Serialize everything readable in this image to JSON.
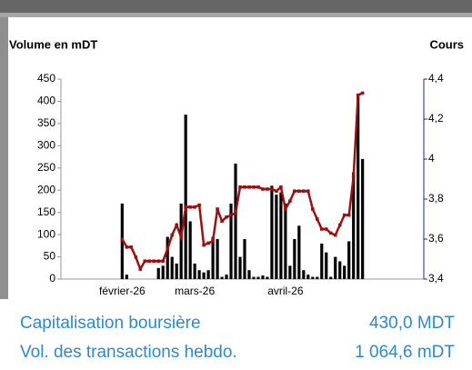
{
  "chart_data": {
    "type": "bar-line",
    "ylabel": "Volume en mDT",
    "y2label": "Cours",
    "categories": [
      null,
      null,
      null,
      null,
      null,
      null,
      null,
      null,
      null,
      null,
      null,
      null,
      null,
      "février-26",
      null,
      null,
      null,
      null,
      null,
      null,
      null,
      null,
      null,
      null,
      null,
      null,
      null,
      null,
      null,
      "mars-26",
      null,
      null,
      null,
      null,
      null,
      null,
      null,
      null,
      null,
      null,
      null,
      null,
      null,
      null,
      null,
      null,
      null,
      null,
      null,
      "avril-26",
      null,
      null,
      null,
      null,
      null,
      null,
      null,
      null,
      null,
      null,
      null,
      null,
      null,
      null,
      null,
      null,
      null,
      null,
      null,
      null,
      null,
      null,
      null,
      null,
      null,
      null,
      null,
      null,
      null,
      null
    ],
    "series": [
      {
        "color": "#000000",
        "axis": "y",
        "values": [
          null,
          null,
          null,
          null,
          null,
          null,
          null,
          null,
          null,
          null,
          null,
          null,
          null,
          170,
          10,
          null,
          null,
          null,
          null,
          null,
          null,
          25,
          30,
          95,
          50,
          35,
          170,
          370,
          130,
          35,
          20,
          15,
          20,
          95,
          90,
          5,
          10,
          170,
          260,
          50,
          90,
          20,
          5,
          5,
          8,
          5,
          210,
          190,
          195,
          170,
          30,
          90,
          120,
          20,
          10,
          5,
          5,
          80,
          60,
          5,
          50,
          40,
          30,
          85,
          240,
          410,
          270,
          null,
          null,
          null,
          null,
          null,
          null,
          null,
          null,
          null,
          null,
          null,
          null,
          null
        ]
      },
      {
        "color": "#9b1010",
        "axis": "y2",
        "values": [
          null,
          null,
          null,
          null,
          null,
          null,
          null,
          null,
          null,
          null,
          null,
          null,
          null,
          3.6,
          3.56,
          3.56,
          3.51,
          3.45,
          3.49,
          3.49,
          3.49,
          3.49,
          3.49,
          3.55,
          3.62,
          3.67,
          3.61,
          3.76,
          3.76,
          3.76,
          3.77,
          3.57,
          3.58,
          3.59,
          3.75,
          3.69,
          3.71,
          3.72,
          3.73,
          3.86,
          3.86,
          3.86,
          3.86,
          3.86,
          3.85,
          3.85,
          3.85,
          3.84,
          3.86,
          3.75,
          3.79,
          3.84,
          3.84,
          3.84,
          3.84,
          3.75,
          3.7,
          3.65,
          3.65,
          3.63,
          3.62,
          3.67,
          3.72,
          3.72,
          3.91,
          4.32,
          4.33,
          null,
          null,
          null,
          null,
          null,
          null,
          null,
          null,
          null,
          null,
          null,
          null,
          null
        ]
      }
    ],
    "ylim": [
      0,
      450
    ],
    "yticks": [
      0,
      50,
      100,
      150,
      200,
      250,
      300,
      350,
      400,
      450
    ],
    "y2lim": [
      3.4,
      4.4
    ],
    "y2ticks": [
      {
        "value": 3.4,
        "label": "3,4"
      },
      {
        "value": 3.6,
        "label": "3,6"
      },
      {
        "value": 3.8,
        "label": "3,8"
      },
      {
        "value": 4,
        "label": "4"
      },
      {
        "value": 4.2,
        "label": "4,2"
      },
      {
        "value": 4.4,
        "label": "4,4"
      }
    ]
  },
  "stats": [
    {
      "label": "Capitalisation boursière",
      "value": "430,0 MDT"
    },
    {
      "label": "Vol. des transactions hebdo.",
      "value": "1 064,6 mDT"
    }
  ]
}
